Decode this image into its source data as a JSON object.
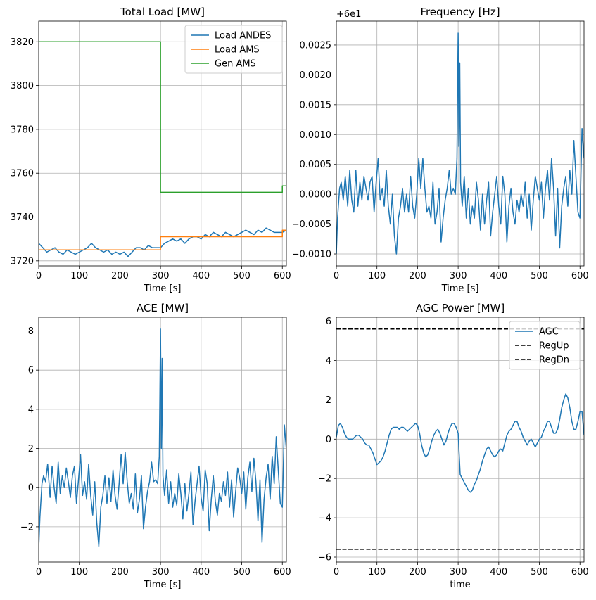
{
  "chart_data": [
    {
      "type": "line",
      "title": "Total Load [MW]",
      "xlabel": "Time [s]",
      "ylabel": "",
      "xlim": [
        0,
        610
      ],
      "ylim": [
        3717.7,
        3829.4
      ],
      "xticks": [
        0,
        100,
        200,
        300,
        400,
        500,
        600
      ],
      "yticks": [
        3720,
        3740,
        3760,
        3780,
        3800,
        3820
      ],
      "ytick_labels": [
        "3720",
        "3740",
        "3760",
        "3780",
        "3800",
        "3820"
      ],
      "grid": true,
      "legend": "top-right",
      "series": [
        {
          "name": "Load ANDES",
          "color": "#1f77b4",
          "x": [
            0,
            10,
            20,
            30,
            40,
            50,
            60,
            70,
            80,
            90,
            100,
            110,
            120,
            130,
            140,
            150,
            160,
            170,
            180,
            190,
            200,
            210,
            220,
            230,
            240,
            250,
            260,
            270,
            280,
            290,
            300,
            310,
            320,
            330,
            340,
            350,
            360,
            370,
            380,
            390,
            400,
            410,
            420,
            430,
            440,
            450,
            460,
            470,
            480,
            490,
            500,
            510,
            520,
            530,
            540,
            550,
            560,
            570,
            580,
            590,
            600,
            610
          ],
          "values": [
            3728,
            3726,
            3724,
            3725,
            3726,
            3724,
            3723,
            3725,
            3724,
            3723,
            3724,
            3725,
            3726,
            3728,
            3726,
            3725,
            3724,
            3725,
            3723,
            3724,
            3723,
            3724,
            3722,
            3724,
            3726,
            3726,
            3725,
            3727,
            3726,
            3726,
            3726,
            3728,
            3729,
            3730,
            3729,
            3730,
            3728,
            3730,
            3731,
            3731,
            3730,
            3732,
            3731,
            3733,
            3732,
            3731,
            3733,
            3732,
            3731,
            3732,
            3733,
            3734,
            3733,
            3732,
            3734,
            3733,
            3735,
            3734,
            3733,
            3733,
            3733,
            3734
          ]
        },
        {
          "name": "Load AMS",
          "color": "#ff7f0e",
          "x": [
            0,
            300,
            300,
            600,
            600,
            610
          ],
          "values": [
            3725,
            3725,
            3731,
            3731,
            3734,
            3734
          ]
        },
        {
          "name": "Gen AMS",
          "color": "#2ca02c",
          "x": [
            0,
            300,
            300,
            600,
            600,
            610
          ],
          "values": [
            3820,
            3820,
            3751.3,
            3751.3,
            3754.2,
            3754.2
          ]
        }
      ]
    },
    {
      "type": "line",
      "title": "Frequency [Hz]",
      "offset_text": "+6e1",
      "xlabel": "Time [s]",
      "ylabel": "",
      "xlim": [
        0,
        610
      ],
      "ylim": [
        -0.0012,
        0.0029
      ],
      "xticks": [
        0,
        100,
        200,
        300,
        400,
        500,
        600
      ],
      "yticks": [
        -0.001,
        -0.0005,
        0,
        0.0005,
        0.001,
        0.0015,
        0.002,
        0.0025
      ],
      "ytick_labels": [
        "−0.0010",
        "−0.0005",
        "0.0000",
        "0.0005",
        "0.0010",
        "0.0015",
        "0.0020",
        "0.0025"
      ],
      "grid": true,
      "series": [
        {
          "name": "",
          "color": "#1f77b4",
          "x": [
            0,
            3,
            8,
            12,
            17,
            22,
            28,
            33,
            38,
            43,
            48,
            53,
            58,
            63,
            68,
            73,
            78,
            83,
            88,
            93,
            98,
            103,
            108,
            113,
            118,
            123,
            128,
            133,
            138,
            143,
            148,
            153,
            158,
            163,
            168,
            173,
            178,
            183,
            188,
            193,
            198,
            203,
            208,
            213,
            218,
            223,
            228,
            233,
            238,
            243,
            248,
            253,
            258,
            263,
            268,
            273,
            278,
            283,
            288,
            293,
            297,
            300,
            302,
            304,
            306,
            310,
            315,
            320,
            325,
            330,
            335,
            340,
            345,
            350,
            355,
            360,
            365,
            370,
            375,
            380,
            385,
            390,
            395,
            400,
            405,
            410,
            415,
            420,
            425,
            430,
            435,
            440,
            445,
            450,
            455,
            460,
            465,
            470,
            475,
            480,
            485,
            490,
            495,
            500,
            505,
            510,
            515,
            520,
            525,
            530,
            535,
            540,
            545,
            550,
            555,
            560,
            565,
            570,
            575,
            580,
            585,
            590,
            595,
            600,
            605,
            610
          ],
          "values": [
            -0.001,
            -0.0004,
            0.0001,
            0.0002,
            -0.0001,
            0.0003,
            -0.0002,
            0.0004,
            -0.0001,
            -0.0003,
            0.0004,
            -0.0002,
            0.0002,
            -0.0001,
            0.0003,
            0.0001,
            -0.0001,
            0.0002,
            0.0003,
            -0.0003,
            0.0002,
            0.0006,
            -0.0001,
            0.0001,
            -0.0002,
            0.0004,
            -0.0002,
            -0.0005,
            0.0,
            -0.0007,
            -0.001,
            -0.0004,
            -0.0002,
            0.0001,
            -0.0003,
            0.0,
            -0.0003,
            0.0003,
            -0.0002,
            -0.0004,
            0.0,
            0.0006,
            0.0001,
            0.0006,
            0.0001,
            -0.0003,
            -0.0002,
            -0.0004,
            0.0002,
            -0.0005,
            -0.0003,
            0.0001,
            -0.0008,
            -0.0004,
            -0.0001,
            0.0001,
            0.0004,
            0.0,
            0.0001,
            0.0,
            0.0006,
            0.0027,
            0.0008,
            0.0022,
            0.0002,
            -0.0002,
            0.0003,
            -0.0004,
            0.0001,
            -0.0005,
            -0.0002,
            -0.0004,
            0.0002,
            -0.0001,
            -0.0006,
            0.0,
            -0.0005,
            -0.0001,
            0.0002,
            -0.0007,
            -0.0003,
            0.0,
            0.0003,
            -0.0002,
            -0.0005,
            0.0003,
            0.0,
            -0.0008,
            -0.0002,
            0.0001,
            -0.0003,
            -0.0005,
            -0.0001,
            -0.0003,
            0.0,
            -0.0002,
            0.0002,
            -0.0004,
            0.0,
            -0.0006,
            -0.0001,
            0.0003,
            0.0001,
            -0.0001,
            0.0002,
            -0.0004,
            0.0001,
            0.0004,
            -0.0001,
            0.0006,
            0.0001,
            -0.0007,
            0.0001,
            -0.0009,
            -0.0002,
            0.0001,
            0.0003,
            -0.0002,
            0.0004,
            0.0,
            0.0009,
            0.0003,
            -0.0003,
            -0.0004,
            0.0011,
            0.0006
          ]
        }
      ]
    },
    {
      "type": "line",
      "title": "ACE [MW]",
      "xlabel": "Time [s]",
      "ylabel": "",
      "xlim": [
        0,
        610
      ],
      "ylim": [
        -3.8,
        8.7
      ],
      "xticks": [
        0,
        100,
        200,
        300,
        400,
        500,
        600
      ],
      "yticks": [
        -2,
        0,
        2,
        4,
        6,
        8
      ],
      "ytick_labels": [
        "−2",
        "0",
        "2",
        "4",
        "6",
        "8"
      ],
      "grid": true,
      "series": [
        {
          "name": "",
          "color": "#1f77b4",
          "x": [
            0,
            3,
            8,
            12,
            17,
            22,
            28,
            33,
            38,
            43,
            48,
            53,
            58,
            63,
            68,
            73,
            78,
            83,
            88,
            93,
            98,
            103,
            108,
            113,
            118,
            123,
            128,
            133,
            138,
            143,
            148,
            153,
            158,
            163,
            168,
            173,
            178,
            183,
            188,
            193,
            198,
            203,
            208,
            213,
            218,
            223,
            228,
            233,
            238,
            243,
            248,
            253,
            258,
            263,
            268,
            273,
            278,
            283,
            288,
            293,
            297,
            300,
            302,
            304,
            306,
            310,
            315,
            320,
            325,
            330,
            335,
            340,
            345,
            350,
            355,
            360,
            365,
            370,
            375,
            380,
            385,
            390,
            395,
            400,
            405,
            410,
            415,
            420,
            425,
            430,
            435,
            440,
            445,
            450,
            455,
            460,
            465,
            470,
            475,
            480,
            485,
            490,
            495,
            500,
            505,
            510,
            515,
            520,
            525,
            530,
            535,
            540,
            545,
            550,
            555,
            560,
            565,
            570,
            575,
            580,
            585,
            590,
            595,
            600,
            605,
            610
          ],
          "values": [
            -3.1,
            -1.5,
            0.2,
            0.6,
            0.3,
            1.2,
            -0.5,
            1.1,
            0.0,
            -0.8,
            1.3,
            -0.3,
            0.6,
            0.0,
            1.0,
            0.3,
            -0.5,
            0.6,
            1.1,
            -0.8,
            0.4,
            1.7,
            -0.4,
            0.3,
            -0.6,
            1.2,
            -0.4,
            -1.4,
            0.3,
            -1.8,
            -3.0,
            -1.0,
            -0.4,
            0.6,
            -0.8,
            0.5,
            -0.7,
            0.9,
            -0.4,
            -1.1,
            0.2,
            1.7,
            0.2,
            1.8,
            0.3,
            -0.8,
            -0.3,
            -1.1,
            0.7,
            -1.3,
            -0.6,
            0.6,
            -2.1,
            -1.0,
            -0.2,
            0.3,
            1.3,
            0.3,
            0.4,
            0.2,
            1.6,
            8.1,
            2.0,
            6.6,
            0.6,
            -0.4,
            0.9,
            -0.8,
            0.3,
            -1.0,
            -0.3,
            -0.9,
            0.7,
            -0.3,
            -1.6,
            0.2,
            -1.2,
            -0.3,
            0.8,
            -1.9,
            -0.7,
            0.2,
            1.1,
            -0.5,
            -1.2,
            0.9,
            0.2,
            -2.2,
            -0.6,
            0.6,
            -0.7,
            -1.4,
            -0.3,
            -0.7,
            0.3,
            -0.4,
            0.8,
            -1.0,
            0.4,
            -1.5,
            -0.2,
            1.0,
            0.5,
            -0.3,
            0.8,
            -1.1,
            0.5,
            1.3,
            -0.2,
            1.5,
            0.3,
            -1.7,
            0.4,
            -2.8,
            -0.6,
            0.5,
            1.2,
            -0.6,
            1.6,
            0.2,
            2.6,
            0.9,
            -0.8,
            -1.0,
            3.2,
            1.9
          ]
        }
      ]
    },
    {
      "type": "line",
      "title": "AGC Power [MW]",
      "xlabel": "time",
      "ylabel": "",
      "xlim": [
        0,
        610
      ],
      "ylim": [
        -6.25,
        6.2
      ],
      "xticks": [
        0,
        100,
        200,
        300,
        400,
        500,
        600
      ],
      "yticks": [
        -6,
        -4,
        -2,
        0,
        2,
        4,
        6
      ],
      "ytick_labels": [
        "−6",
        "−4",
        "−2",
        "0",
        "2",
        "4",
        "6"
      ],
      "grid": true,
      "legend": "top-right",
      "series": [
        {
          "name": "AGC",
          "color": "#1f77b4",
          "x": [
            0,
            5,
            10,
            15,
            20,
            25,
            30,
            35,
            40,
            45,
            50,
            55,
            60,
            65,
            70,
            75,
            80,
            85,
            90,
            95,
            100,
            105,
            110,
            115,
            120,
            125,
            130,
            135,
            140,
            145,
            150,
            155,
            160,
            165,
            170,
            175,
            180,
            185,
            190,
            195,
            200,
            205,
            210,
            215,
            220,
            225,
            230,
            235,
            240,
            245,
            250,
            255,
            260,
            265,
            270,
            275,
            280,
            285,
            290,
            295,
            300,
            305,
            310,
            315,
            320,
            325,
            330,
            335,
            340,
            345,
            350,
            355,
            360,
            365,
            370,
            375,
            380,
            385,
            390,
            395,
            400,
            405,
            410,
            415,
            420,
            425,
            430,
            435,
            440,
            445,
            450,
            455,
            460,
            465,
            470,
            475,
            480,
            485,
            490,
            495,
            500,
            505,
            510,
            515,
            520,
            525,
            530,
            535,
            540,
            545,
            550,
            555,
            560,
            565,
            570,
            575,
            580,
            585,
            590,
            595,
            600,
            605,
            610
          ],
          "values": [
            0.1,
            0.7,
            0.8,
            0.6,
            0.3,
            0.1,
            0.0,
            0.0,
            0.0,
            0.1,
            0.2,
            0.2,
            0.1,
            0.0,
            -0.2,
            -0.3,
            -0.3,
            -0.5,
            -0.7,
            -1.0,
            -1.3,
            -1.2,
            -1.1,
            -0.9,
            -0.6,
            -0.2,
            0.2,
            0.5,
            0.6,
            0.6,
            0.6,
            0.5,
            0.6,
            0.6,
            0.5,
            0.4,
            0.5,
            0.6,
            0.7,
            0.8,
            0.7,
            0.3,
            -0.3,
            -0.7,
            -0.9,
            -0.8,
            -0.5,
            -0.1,
            0.2,
            0.4,
            0.5,
            0.3,
            0.0,
            -0.3,
            -0.1,
            0.3,
            0.6,
            0.8,
            0.8,
            0.6,
            0.3,
            -1.8,
            -2.0,
            -2.2,
            -2.4,
            -2.6,
            -2.7,
            -2.6,
            -2.3,
            -2.1,
            -1.8,
            -1.5,
            -1.1,
            -0.8,
            -0.5,
            -0.4,
            -0.6,
            -0.8,
            -0.9,
            -0.8,
            -0.6,
            -0.5,
            -0.6,
            -0.2,
            0.2,
            0.4,
            0.5,
            0.7,
            0.9,
            0.9,
            0.6,
            0.4,
            0.1,
            -0.1,
            -0.3,
            -0.1,
            0.0,
            -0.2,
            -0.4,
            -0.2,
            0.0,
            0.1,
            0.4,
            0.6,
            0.9,
            0.9,
            0.6,
            0.3,
            0.3,
            0.5,
            1.0,
            1.6,
            2.0,
            2.3,
            2.1,
            1.6,
            0.9,
            0.5,
            0.5,
            0.9,
            1.4,
            1.4,
            0.2
          ]
        },
        {
          "name": "RegUp",
          "color": "#000000",
          "dash": "dashed",
          "x": [
            0,
            610
          ],
          "values": [
            5.6,
            5.6
          ]
        },
        {
          "name": "RegDn",
          "color": "#000000",
          "dash": "dashed",
          "x": [
            0,
            610
          ],
          "values": [
            -5.6,
            -5.6
          ]
        }
      ]
    }
  ]
}
